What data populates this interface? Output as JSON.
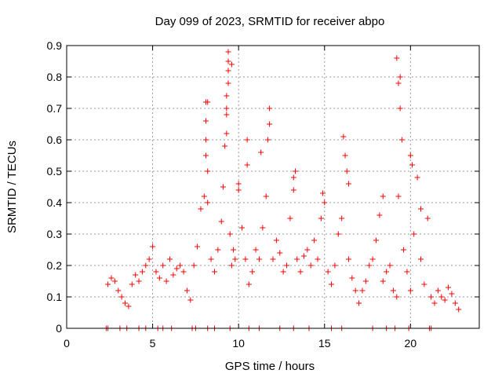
{
  "chart_data": {
    "type": "scatter",
    "title": "Day 099 of 2023, SRMTID for receiver abpo",
    "xlabel": "GPS time / hours",
    "ylabel": "SRMTID / TECUs",
    "xlim": [
      0,
      24
    ],
    "ylim": [
      0,
      0.9
    ],
    "xticks": [
      0,
      5,
      10,
      15,
      20
    ],
    "yticks": [
      0,
      0.1,
      0.2,
      0.3,
      0.4,
      0.5,
      0.6,
      0.7,
      0.8,
      0.9
    ],
    "grid": true,
    "marker": "plus",
    "color": "#ff0000",
    "series": [
      {
        "name": "SRMTID",
        "x": [
          2.4,
          2.6,
          2.8,
          3.0,
          3.2,
          3.4,
          3.6,
          3.8,
          4.0,
          4.2,
          4.4,
          4.6,
          4.8,
          5.0,
          5.2,
          5.4,
          5.6,
          5.8,
          6.0,
          6.2,
          6.4,
          6.6,
          6.8,
          7.0,
          7.2,
          7.4,
          7.6,
          7.8,
          8.0,
          8.1,
          8.2,
          8.4,
          8.6,
          8.8,
          9.0,
          9.1,
          9.2,
          9.3,
          9.4,
          9.5,
          9.6,
          9.7,
          9.8,
          10.0,
          10.2,
          10.4,
          10.6,
          10.8,
          11.0,
          11.2,
          11.4,
          11.6,
          11.8,
          12.0,
          12.2,
          12.4,
          12.6,
          12.8,
          13.0,
          13.2,
          13.4,
          13.6,
          13.8,
          14.0,
          14.2,
          14.4,
          14.6,
          14.8,
          15.0,
          15.2,
          15.4,
          15.6,
          15.8,
          16.0,
          16.2,
          16.4,
          16.6,
          16.8,
          17.0,
          17.2,
          17.4,
          17.6,
          17.8,
          18.0,
          18.2,
          18.4,
          18.6,
          18.8,
          19.0,
          19.2,
          19.3,
          19.4,
          19.6,
          19.8,
          20.0,
          20.2,
          20.4,
          20.6,
          20.8,
          21.0,
          21.2,
          21.4,
          21.6,
          21.8,
          22.0,
          22.2,
          22.4,
          22.6,
          22.8,
          8.1,
          8.1,
          8.1,
          8.2,
          8.2,
          9.3,
          9.3,
          9.3,
          9.4,
          9.4,
          9.4,
          9.6,
          10.0,
          10.5,
          10.5,
          11.3,
          11.7,
          11.8,
          13.2,
          13.3,
          14.9,
          16.1,
          16.3,
          16.4,
          18.4,
          19.2,
          19.3,
          19.4,
          19.5,
          20.0,
          20.1,
          20.6,
          2.3,
          2.4,
          3.1,
          3.5,
          4.2,
          4.6,
          5.3,
          5.6,
          6.1,
          7.3,
          7.5,
          8.2,
          8.6,
          9.5,
          10.6,
          11.2,
          12.4,
          13.2,
          14.1,
          15.4,
          16.0,
          17.8,
          18.6,
          19.1,
          19.9,
          21.1,
          21.2
        ],
        "y": [
          0.14,
          0.16,
          0.15,
          0.12,
          0.1,
          0.08,
          0.07,
          0.14,
          0.17,
          0.15,
          0.18,
          0.2,
          0.22,
          0.26,
          0.18,
          0.16,
          0.2,
          0.15,
          0.22,
          0.17,
          0.19,
          0.2,
          0.18,
          0.12,
          0.09,
          0.2,
          0.26,
          0.38,
          0.42,
          0.55,
          0.72,
          0.22,
          0.18,
          0.25,
          0.34,
          0.45,
          0.58,
          0.7,
          0.85,
          0.3,
          0.2,
          0.25,
          0.22,
          0.44,
          0.32,
          0.22,
          0.14,
          0.18,
          0.25,
          0.22,
          0.32,
          0.42,
          0.65,
          0.22,
          0.28,
          0.24,
          0.18,
          0.2,
          0.35,
          0.48,
          0.22,
          0.18,
          0.23,
          0.25,
          0.2,
          0.28,
          0.22,
          0.35,
          0.4,
          0.18,
          0.14,
          0.2,
          0.3,
          0.35,
          0.55,
          0.22,
          0.16,
          0.12,
          0.08,
          0.12,
          0.15,
          0.2,
          0.22,
          0.28,
          0.36,
          0.15,
          0.18,
          0.2,
          0.12,
          0.1,
          0.42,
          0.8,
          0.25,
          0.18,
          0.12,
          0.3,
          0.48,
          0.22,
          0.14,
          0.35,
          0.1,
          0.08,
          0.12,
          0.1,
          0.09,
          0.13,
          0.11,
          0.08,
          0.06,
          0.6,
          0.66,
          0.72,
          0.5,
          0.4,
          0.62,
          0.68,
          0.74,
          0.78,
          0.82,
          0.88,
          0.84,
          0.46,
          0.52,
          0.6,
          0.56,
          0.6,
          0.7,
          0.44,
          0.5,
          0.43,
          0.61,
          0.5,
          0.46,
          0.42,
          0.86,
          0.78,
          0.7,
          0.6,
          0.55,
          0.52,
          0.38,
          0.0,
          0.0,
          0.0,
          0.0,
          0.0,
          0.0,
          0.0,
          0.0,
          0.0,
          0.0,
          0.0,
          0.0,
          0.0,
          0.0,
          0.0,
          0.0,
          0.0,
          0.0,
          0.0,
          0.0,
          0.0,
          0.0,
          0.0,
          0.0,
          0.0,
          0.0,
          0.0
        ]
      }
    ]
  }
}
